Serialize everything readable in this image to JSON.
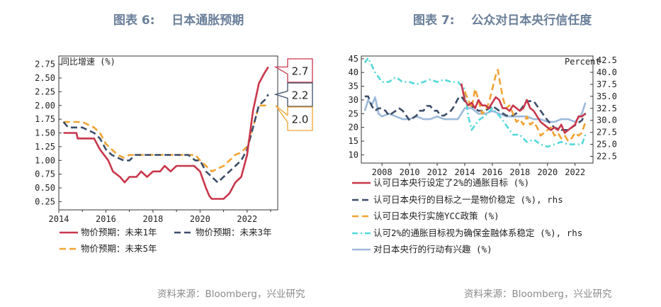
{
  "colors": {
    "red": "#c8374b",
    "navy": "#3c4e6a",
    "orange": "#f2a333",
    "cyan": "#54d8da",
    "lightblue": "#9dbadb",
    "title": "#6a7f99",
    "source": "#8a8a8a"
  },
  "left": {
    "title": "图表 6:    日本通胀预期",
    "source": "资料来源：Bloomberg，兴业研究"
  },
  "right": {
    "title": "图表 7:    公众对日本央行信任度",
    "source": "资料来源：Bloomberg，兴业研究"
  },
  "chart_data": [
    {
      "type": "line",
      "title": "日本通胀预期",
      "ylabel": "同比增速 (%)",
      "xlim": [
        2014,
        2023.3
      ],
      "ylim": [
        0.1,
        2.9
      ],
      "yticks": [
        0.25,
        0.5,
        0.75,
        1.0,
        1.25,
        1.5,
        1.75,
        2.0,
        2.25,
        2.5,
        2.75
      ],
      "ytick_labels": [
        "0.25",
        "0.50",
        "0.75",
        "1.00",
        "1.25",
        "1.50",
        "1.75",
        "2.00",
        "2.25",
        "2.50",
        "2.75"
      ],
      "xticks": [
        2014,
        2016,
        2018,
        2020,
        2022
      ],
      "xtick_labels": [
        "2014",
        "2016",
        "2018",
        "2020",
        "2022"
      ],
      "series": [
        {
          "name": "物价预期：未来1年",
          "color": "#c8374b",
          "style": "solid",
          "callout": "2.7",
          "x": [
            2014.2,
            2014.75,
            2014.8,
            2015.5,
            2015.75,
            2016.1,
            2016.3,
            2016.6,
            2016.8,
            2017.0,
            2017.3,
            2017.5,
            2017.75,
            2018.0,
            2018.3,
            2018.5,
            2018.75,
            2019.0,
            2019.25,
            2019.5,
            2019.75,
            2020.0,
            2020.25,
            2020.4,
            2020.5,
            2020.75,
            2021.0,
            2021.25,
            2021.5,
            2021.75,
            2022.0,
            2022.25,
            2022.5,
            2022.75,
            2022.9
          ],
          "y": [
            1.5,
            1.5,
            1.4,
            1.4,
            1.2,
            1.0,
            0.8,
            0.7,
            0.6,
            0.7,
            0.7,
            0.8,
            0.7,
            0.8,
            0.8,
            0.9,
            0.8,
            0.9,
            0.9,
            0.9,
            0.9,
            0.8,
            0.5,
            0.35,
            0.3,
            0.3,
            0.3,
            0.4,
            0.6,
            0.7,
            1.1,
            1.9,
            2.4,
            2.6,
            2.7
          ]
        },
        {
          "name": "物价预期：未来3年",
          "color": "#3c4e6a",
          "style": "dashed",
          "callout": "2.2",
          "x": [
            2014.2,
            2014.4,
            2014.75,
            2015.0,
            2015.5,
            2015.75,
            2016.0,
            2016.25,
            2016.75,
            2017.0,
            2017.25,
            2017.75,
            2018.0,
            2018.5,
            2019.0,
            2019.5,
            2019.8,
            2020.0,
            2020.25,
            2020.5,
            2020.75,
            2021.0,
            2021.25,
            2021.5,
            2021.75,
            2022.0,
            2022.25,
            2022.5,
            2022.75,
            2022.9
          ],
          "y": [
            1.7,
            1.6,
            1.6,
            1.6,
            1.5,
            1.4,
            1.2,
            1.1,
            1.0,
            1.0,
            1.1,
            1.1,
            1.1,
            1.1,
            1.1,
            1.1,
            1.0,
            1.0,
            0.8,
            0.7,
            0.6,
            0.7,
            0.8,
            0.9,
            1.0,
            1.2,
            1.6,
            2.0,
            2.1,
            2.2
          ]
        },
        {
          "name": "物价预期：未来5年",
          "color": "#f2a333",
          "style": "dashed",
          "callout": "2.0",
          "x": [
            2014.2,
            2014.4,
            2014.75,
            2015.0,
            2015.5,
            2015.75,
            2016.0,
            2016.25,
            2016.5,
            2016.75,
            2017.0,
            2017.5,
            2018.0,
            2018.5,
            2019.0,
            2019.5,
            2019.8,
            2020.0,
            2020.25,
            2020.5,
            2020.75,
            2021.0,
            2021.25,
            2021.5,
            2021.75,
            2022.0,
            2022.25,
            2022.5,
            2022.75,
            2022.9
          ],
          "y": [
            1.7,
            1.7,
            1.7,
            1.7,
            1.6,
            1.5,
            1.3,
            1.2,
            1.1,
            1.05,
            1.1,
            1.1,
            1.1,
            1.1,
            1.1,
            1.1,
            1.1,
            1.0,
            0.9,
            0.8,
            0.85,
            0.9,
            1.0,
            1.1,
            1.15,
            1.25,
            1.6,
            2.0,
            2.0,
            2.0
          ]
        }
      ]
    },
    {
      "type": "line",
      "title": "公众对日本央行信任度",
      "ylabel_right": "Percent",
      "xlim": [
        2006.5,
        2023.3
      ],
      "ylim_left": [
        7,
        46
      ],
      "ylim_right": [
        21.1,
        43.4
      ],
      "yticks_left": [
        10,
        15,
        20,
        25,
        30,
        35,
        40,
        45
      ],
      "ytick_labels_left": [
        "10",
        "15",
        "20",
        "25",
        "30",
        "35",
        "40",
        "45"
      ],
      "yticks_right": [
        22.5,
        25.0,
        27.5,
        30.0,
        32.5,
        35.0,
        37.5,
        40.0,
        42.5
      ],
      "ytick_labels_right": [
        "22.5",
        "25.0",
        "27.5",
        "30.0",
        "32.5",
        "35.0",
        "37.5",
        "40.0",
        "42.5"
      ],
      "xticks": [
        2008,
        2010,
        2012,
        2014,
        2016,
        2018,
        2020,
        2022
      ],
      "xtick_labels": [
        "2008",
        "2010",
        "2012",
        "2014",
        "2016",
        "2018",
        "2020",
        "2022"
      ],
      "series": [
        {
          "name": "认可日本央行设定了2%的通胀目标 (%)",
          "color": "#c8374b",
          "style": "solid",
          "axis": "left",
          "x": [
            2013.75,
            2014.0,
            2014.25,
            2014.5,
            2014.75,
            2015.0,
            2015.25,
            2015.5,
            2015.75,
            2016.0,
            2016.25,
            2016.5,
            2016.75,
            2017.0,
            2017.25,
            2017.5,
            2017.75,
            2018.0,
            2018.25,
            2018.5,
            2018.75,
            2019.0,
            2019.25,
            2019.5,
            2019.75,
            2020.0,
            2020.25,
            2020.5,
            2020.75,
            2021.0,
            2021.25,
            2021.5,
            2021.75,
            2022.0,
            2022.25,
            2022.5,
            2022.75
          ],
          "y": [
            36,
            30,
            28,
            29,
            27,
            30,
            28,
            28,
            27,
            29,
            31,
            30,
            27,
            27,
            26,
            28,
            27,
            26,
            27,
            30,
            27,
            26,
            24,
            22,
            21,
            20,
            19,
            20,
            19,
            21,
            18,
            19,
            20,
            21,
            24,
            24,
            25
          ]
        },
        {
          "name": "认可日本央行的目标之一是物价稳定 (%), rhs",
          "color": "#3c4e6a",
          "style": "dashed",
          "axis": "right",
          "x": [
            2006.75,
            2007.0,
            2007.25,
            2007.5,
            2007.75,
            2008.0,
            2008.25,
            2008.5,
            2008.75,
            2009.0,
            2009.25,
            2009.5,
            2009.75,
            2010.0,
            2010.25,
            2010.5,
            2010.75,
            2011.0,
            2011.25,
            2011.5,
            2011.75,
            2012.0,
            2012.25,
            2012.5,
            2012.75,
            2013.0,
            2013.25,
            2013.5,
            2013.75,
            2014.0,
            2014.5,
            2015.0,
            2015.5,
            2016.0,
            2016.5,
            2017.0,
            2017.5,
            2018.0,
            2018.5,
            2019.0,
            2019.5,
            2020.0,
            2020.5,
            2021.0,
            2021.5,
            2022.0,
            2022.5,
            2022.75
          ],
          "y": [
            35,
            35,
            33,
            32,
            32.5,
            32.5,
            32,
            31,
            31.5,
            32,
            32.5,
            32,
            31,
            30,
            30.5,
            31,
            32,
            32,
            33,
            33,
            32,
            32,
            31,
            31,
            31.5,
            32,
            33,
            34.5,
            35,
            34,
            33,
            32,
            32,
            33,
            32,
            31,
            31,
            32,
            34,
            34,
            32,
            30,
            28.5,
            28,
            28,
            29,
            30,
            31.5
          ]
        },
        {
          "name": "认可日本央行实施YCC政策 (%)",
          "color": "#f2a333",
          "style": "dashed",
          "axis": "left",
          "x": [
            2014.0,
            2014.25,
            2014.5,
            2014.75,
            2015.0,
            2015.25,
            2015.5,
            2015.75,
            2016.0,
            2016.25,
            2016.4,
            2016.6,
            2016.8,
            2017.0,
            2017.25,
            2017.5,
            2017.75,
            2018.0,
            2018.25,
            2018.5,
            2018.75,
            2019.0,
            2019.25,
            2019.5,
            2019.75,
            2020.0,
            2020.25,
            2020.5,
            2020.75,
            2021.0,
            2021.25,
            2021.5,
            2021.75,
            2022.0,
            2022.25,
            2022.5,
            2022.75
          ],
          "y": [
            33,
            30,
            27,
            34,
            30,
            25,
            26,
            29,
            34,
            39,
            41,
            35,
            30,
            27,
            28,
            25,
            22,
            23,
            21,
            24,
            21,
            22,
            20,
            17,
            18,
            19,
            20,
            17,
            18,
            16,
            17,
            15,
            16,
            18,
            17,
            18,
            22
          ]
        },
        {
          "name": "认可2%的通胀目标视为确保金融体系稳定 (%), rhs",
          "color": "#54d8da",
          "style": "dashdot",
          "axis": "right",
          "x": [
            2006.75,
            2007.0,
            2007.25,
            2007.5,
            2007.75,
            2008.0,
            2008.5,
            2009.0,
            2009.5,
            2010.0,
            2010.5,
            2011.0,
            2011.5,
            2012.0,
            2012.5,
            2013.0,
            2013.5,
            2014.0,
            2014.25,
            2014.5,
            2014.75,
            2015.0,
            2015.5,
            2016.0,
            2016.5,
            2017.0,
            2017.5,
            2018.0,
            2018.5,
            2019.0,
            2019.5,
            2020.0,
            2020.5,
            2021.0,
            2021.5,
            2022.0,
            2022.5,
            2022.75
          ],
          "y": [
            42,
            43,
            41.5,
            40,
            39,
            38,
            38,
            39,
            38,
            38,
            37.5,
            38,
            38.5,
            38,
            38.5,
            38,
            38,
            36.5,
            31,
            28,
            29,
            30,
            31,
            32.5,
            31,
            29,
            27,
            27,
            25.5,
            26,
            25,
            24.5,
            25,
            25.5,
            25,
            25,
            25,
            27
          ]
        },
        {
          "name": "对日本央行的行动有兴趣 (%)",
          "color": "#9dbadb",
          "style": "solid",
          "axis": "left",
          "x": [
            2006.75,
            2007.0,
            2007.25,
            2007.5,
            2007.75,
            2008.0,
            2008.5,
            2009.0,
            2009.5,
            2010.0,
            2010.5,
            2011.0,
            2011.5,
            2012.0,
            2012.5,
            2013.0,
            2013.5,
            2014.0,
            2014.5,
            2015.0,
            2015.5,
            2016.0,
            2016.5,
            2017.0,
            2017.5,
            2018.0,
            2018.5,
            2019.0,
            2019.5,
            2020.0,
            2020.5,
            2021.0,
            2021.5,
            2022.0,
            2022.5,
            2022.75
          ],
          "y": [
            26,
            30,
            28,
            31,
            25,
            24,
            25,
            24,
            23,
            23,
            24,
            23,
            23,
            24,
            23,
            23,
            23,
            27,
            27,
            25,
            25,
            26,
            25,
            24,
            24,
            24,
            24,
            23,
            23,
            22,
            22,
            23,
            23,
            22,
            25,
            29
          ]
        }
      ]
    }
  ]
}
